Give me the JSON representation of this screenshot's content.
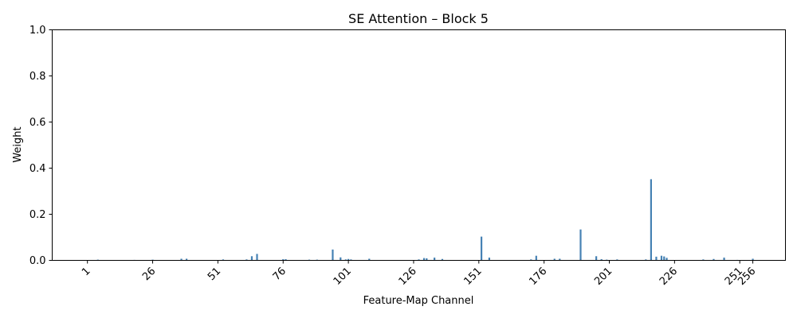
{
  "chart_data": {
    "type": "bar",
    "title": "SE Attention – Block 5",
    "xlabel": "Feature-Map Channel",
    "ylabel": "Weight",
    "ylim": [
      0,
      1.0
    ],
    "xlim": [
      -12.5,
      268.5
    ],
    "yticks": [
      "0.0",
      "0.2",
      "0.4",
      "0.6",
      "0.8",
      "1.0"
    ],
    "xticks": [
      "1",
      "26",
      "51",
      "76",
      "101",
      "126",
      "151",
      "176",
      "201",
      "226",
      "251",
      "256"
    ],
    "grid": false,
    "bar_color": "#4682b4",
    "series": [
      {
        "x": [
          1,
          5,
          19,
          26,
          37,
          39,
          53,
          62,
          64,
          66,
          76,
          77,
          86,
          89,
          95,
          98,
          100,
          101,
          102,
          109,
          128,
          130,
          131,
          134,
          137,
          152,
          155,
          171,
          173,
          180,
          182,
          190,
          196,
          198,
          200,
          204,
          215,
          217,
          219,
          221,
          222,
          223,
          237,
          241,
          245,
          250,
          256
        ],
        "values": [
          0.001,
          0.003,
          0.002,
          0.003,
          0.007,
          0.007,
          0.004,
          0.004,
          0.018,
          0.028,
          0.005,
          0.005,
          0.003,
          0.003,
          0.047,
          0.013,
          0.004,
          0.006,
          0.004,
          0.007,
          0.004,
          0.01,
          0.009,
          0.012,
          0.006,
          0.103,
          0.012,
          0.004,
          0.02,
          0.007,
          0.007,
          0.134,
          0.018,
          0.005,
          0.003,
          0.004,
          0.004,
          0.352,
          0.016,
          0.02,
          0.017,
          0.011,
          0.004,
          0.006,
          0.012,
          0.002,
          0.007
        ]
      }
    ]
  }
}
